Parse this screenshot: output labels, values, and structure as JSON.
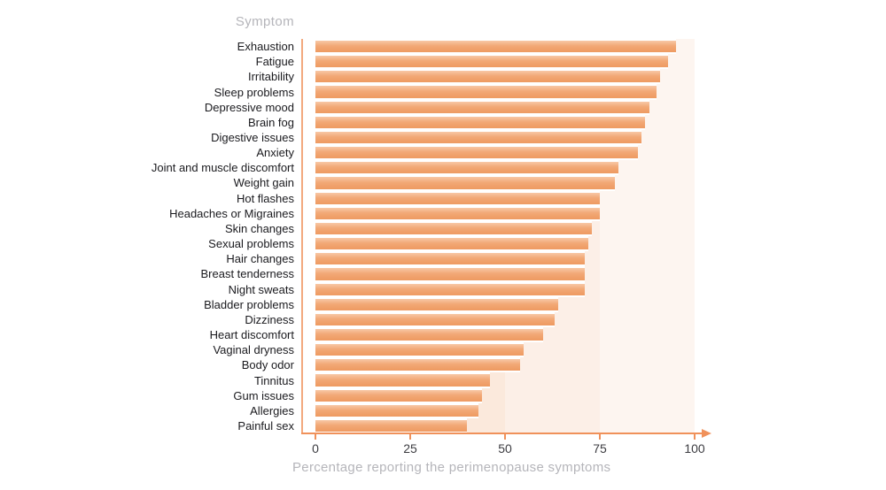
{
  "chart": {
    "y_axis_title": "Symptom",
    "x_axis_caption": "Percentage reporting the perimenopause symptoms"
  },
  "chart_data": {
    "type": "bar",
    "orientation": "horizontal",
    "title": "",
    "ylabel": "Symptom",
    "xlabel": "Percentage reporting the perimenopause symptoms",
    "xlim": [
      0,
      100
    ],
    "x_tick_values": [
      0,
      25,
      50,
      75,
      100
    ],
    "grid": false,
    "legend": false,
    "categories": [
      "Exhaustion",
      "Fatigue",
      "Irritability",
      "Sleep problems",
      "Depressive mood",
      "Brain fog",
      "Digestive issues",
      "Anxiety",
      "Joint and muscle discomfort",
      "Weight gain",
      "Hot flashes",
      "Headaches or Migraines",
      "Skin changes",
      "Sexual problems",
      "Hair changes",
      "Breast tenderness",
      "Night sweats",
      "Bladder problems",
      "Dizziness",
      "Heart discomfort",
      "Vaginal dryness",
      "Body odor",
      "Tinnitus",
      "Gum issues",
      "Allergies",
      "Painful sex"
    ],
    "values": [
      95,
      93,
      91,
      90,
      88,
      87,
      86,
      85,
      80,
      79,
      75,
      75,
      73,
      72,
      71,
      71,
      71,
      64,
      63,
      60,
      55,
      54,
      46,
      44,
      43,
      40
    ],
    "colors": {
      "bar_gradient_top": "#f8c8a6",
      "bar_gradient_mid": "#f2a876",
      "bar_gradient_bottom": "#ee9a61",
      "axis_line": "#f0915a",
      "y_axis_line": "#f3a97e",
      "category_label_text": "#1a1a1e",
      "tick_label_text": "#3c3c41",
      "axis_title_text": "#b5b5ba"
    },
    "background_bands": [
      {
        "from": 0,
        "to": 50,
        "color": "#fbe9dc"
      },
      {
        "from": 50,
        "to": 75,
        "color": "#fcefe7"
      },
      {
        "from": 75,
        "to": 100,
        "color": "#fdf5f0"
      }
    ]
  }
}
